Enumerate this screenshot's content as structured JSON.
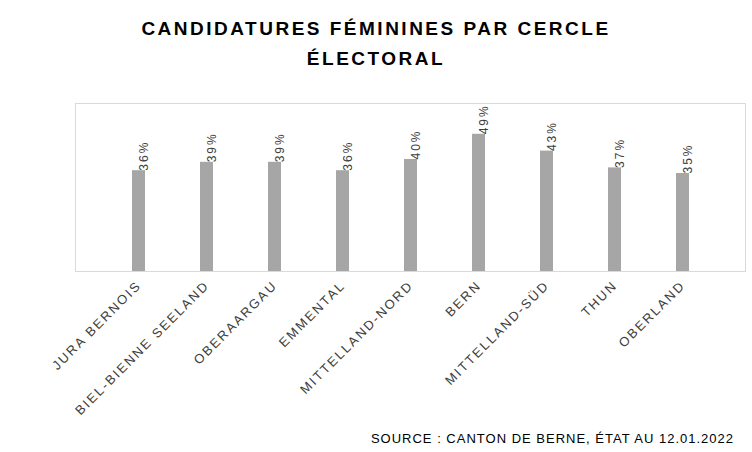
{
  "chart_data": {
    "type": "bar",
    "title": "CANDIDATURES FÉMININES PAR CERCLE ÉLECTORAL",
    "source": "SOURCE : CANTON DE BERNE, ÉTAT AU 12.01.2022",
    "categories": [
      "JURA BERNOIS",
      "BIEL-BIENNE SEELAND",
      "OBERAARGAU",
      "EMMENTAL",
      "MITTELLAND-NORD",
      "BERN",
      "MITTELLAND-SÜD",
      "THUN",
      "OBERLAND"
    ],
    "values": [
      36,
      39,
      39,
      36,
      40,
      49,
      43,
      37,
      35
    ],
    "value_labels": [
      "36%",
      "39%",
      "39%",
      "36%",
      "40%",
      "49%",
      "43%",
      "37%",
      "35%"
    ],
    "color": "#a6a6a6",
    "ylim": [
      0,
      60
    ],
    "grid": false,
    "data_labels": true,
    "tick_labels": "x"
  }
}
